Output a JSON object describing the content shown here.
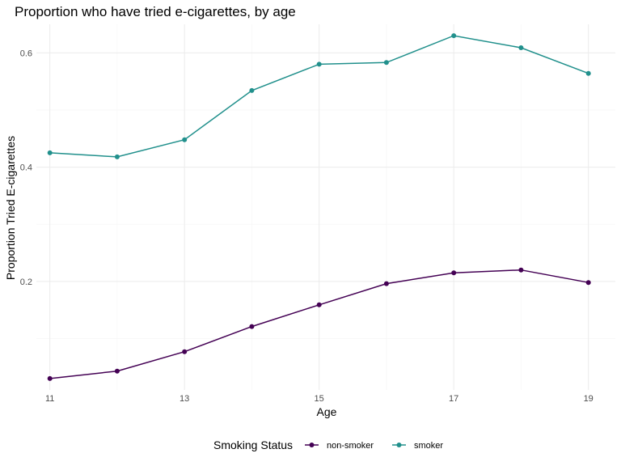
{
  "chart_data": {
    "type": "line",
    "title": "Proportion who have tried e-cigarettes, by age",
    "xlabel": "Age",
    "ylabel": "Proportion Tried E-cigarettes",
    "x": [
      11,
      12,
      13,
      14,
      15,
      16,
      17,
      18,
      19
    ],
    "x_ticks": [
      "11",
      "13",
      "15",
      "17",
      "19"
    ],
    "y_ticks": [
      "0.2",
      "0.4",
      "0.6"
    ],
    "xlim": [
      10.8,
      19.4
    ],
    "ylim": [
      0.01,
      0.65
    ],
    "grid": true,
    "legend": {
      "title": "Smoking Status",
      "position": "bottom"
    },
    "series": [
      {
        "name": "non-smoker",
        "color": "#440154",
        "values": [
          0.03,
          0.043,
          0.077,
          0.121,
          0.159,
          0.196,
          0.215,
          0.22,
          0.198
        ]
      },
      {
        "name": "smoker",
        "color": "#21908C",
        "values": [
          0.425,
          0.418,
          0.448,
          0.534,
          0.58,
          0.583,
          0.63,
          0.609,
          0.564
        ]
      }
    ]
  }
}
